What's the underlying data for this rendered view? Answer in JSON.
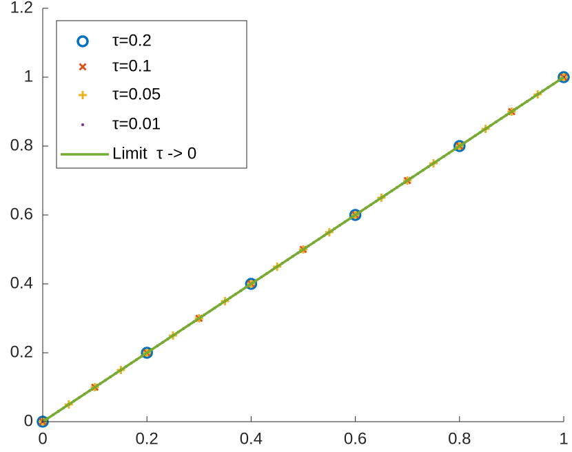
{
  "chart_data": {
    "type": "line",
    "xlim": [
      0,
      1
    ],
    "ylim": [
      0,
      1.2
    ],
    "xticks": [
      0,
      0.2,
      0.4,
      0.6,
      0.8,
      1
    ],
    "yticks": [
      0,
      0.2,
      0.4,
      0.6,
      0.8,
      1,
      1.2
    ],
    "grid": false,
    "legend": "upper left",
    "series": [
      {
        "name": "τ=0.2",
        "color": "#0072BD",
        "marker": "circle",
        "x": [
          0,
          0.2,
          0.4,
          0.6,
          0.8,
          1
        ],
        "values": [
          0,
          0.2,
          0.4,
          0.6,
          0.8,
          1
        ]
      },
      {
        "name": "τ=0.1",
        "color": "#D95319",
        "marker": "x",
        "x": [
          0,
          0.1,
          0.2,
          0.3,
          0.4,
          0.5,
          0.6,
          0.7,
          0.8,
          0.9,
          1
        ],
        "values": [
          0,
          0.1,
          0.2,
          0.3,
          0.4,
          0.5,
          0.6,
          0.7,
          0.8,
          0.9,
          1
        ]
      },
      {
        "name": "τ=0.05",
        "color": "#EDB120",
        "marker": "plus",
        "x": [
          0,
          0.05,
          0.1,
          0.15,
          0.2,
          0.25,
          0.3,
          0.35,
          0.4,
          0.45,
          0.5,
          0.55,
          0.6,
          0.65,
          0.7,
          0.75,
          0.8,
          0.85,
          0.9,
          0.95,
          1
        ],
        "values": [
          0,
          0.05,
          0.1,
          0.15,
          0.2,
          0.25,
          0.3,
          0.35,
          0.4,
          0.45,
          0.5,
          0.55,
          0.6,
          0.65,
          0.7,
          0.75,
          0.8,
          0.85,
          0.9,
          0.95,
          1
        ]
      },
      {
        "name": "τ=0.01",
        "color": "#7E2F8E",
        "marker": "dot",
        "x": [
          0,
          0.01,
          0.02,
          0.03,
          0.04,
          0.05,
          0.06,
          0.07,
          0.08,
          0.09,
          0.1,
          0.11,
          0.12,
          0.13,
          0.14,
          0.15,
          0.16,
          0.17,
          0.18,
          0.19,
          0.2,
          0.21,
          0.22,
          0.23,
          0.24,
          0.25,
          0.26,
          0.27,
          0.28,
          0.29,
          0.3,
          0.31,
          0.32,
          0.33,
          0.34,
          0.35,
          0.36,
          0.37,
          0.38,
          0.39,
          0.4,
          0.41,
          0.42,
          0.43,
          0.44,
          0.45,
          0.46,
          0.47,
          0.48,
          0.49,
          0.5,
          0.51,
          0.52,
          0.53,
          0.54,
          0.55,
          0.56,
          0.57,
          0.58,
          0.59,
          0.6,
          0.61,
          0.62,
          0.63,
          0.64,
          0.65,
          0.66,
          0.67,
          0.68,
          0.69,
          0.7,
          0.71,
          0.72,
          0.73,
          0.74,
          0.75,
          0.76,
          0.77,
          0.78,
          0.79,
          0.8,
          0.81,
          0.82,
          0.83,
          0.84,
          0.85,
          0.86,
          0.87,
          0.88,
          0.89,
          0.9,
          0.91,
          0.92,
          0.93,
          0.94,
          0.95,
          0.96,
          0.97,
          0.98,
          0.99,
          1
        ],
        "values": [
          0,
          0.01,
          0.02,
          0.03,
          0.04,
          0.05,
          0.06,
          0.07,
          0.08,
          0.09,
          0.1,
          0.11,
          0.12,
          0.13,
          0.14,
          0.15,
          0.16,
          0.17,
          0.18,
          0.19,
          0.2,
          0.21,
          0.22,
          0.23,
          0.24,
          0.25,
          0.26,
          0.27,
          0.28,
          0.29,
          0.3,
          0.31,
          0.32,
          0.33,
          0.34,
          0.35,
          0.36,
          0.37,
          0.38,
          0.39,
          0.4,
          0.41,
          0.42,
          0.43,
          0.44,
          0.45,
          0.46,
          0.47,
          0.48,
          0.49,
          0.5,
          0.51,
          0.52,
          0.53,
          0.54,
          0.55,
          0.56,
          0.57,
          0.58,
          0.59,
          0.6,
          0.61,
          0.62,
          0.63,
          0.64,
          0.65,
          0.66,
          0.67,
          0.68,
          0.69,
          0.7,
          0.71,
          0.72,
          0.73,
          0.74,
          0.75,
          0.76,
          0.77,
          0.78,
          0.79,
          0.8,
          0.81,
          0.82,
          0.83,
          0.84,
          0.85,
          0.86,
          0.87,
          0.88,
          0.89,
          0.9,
          0.91,
          0.92,
          0.93,
          0.94,
          0.95,
          0.96,
          0.97,
          0.98,
          0.99,
          1
        ]
      },
      {
        "name": "Limit  τ -> 0",
        "color": "#77AC30",
        "marker": "none",
        "x": [
          0,
          1
        ],
        "values": [
          0,
          1
        ]
      }
    ]
  }
}
